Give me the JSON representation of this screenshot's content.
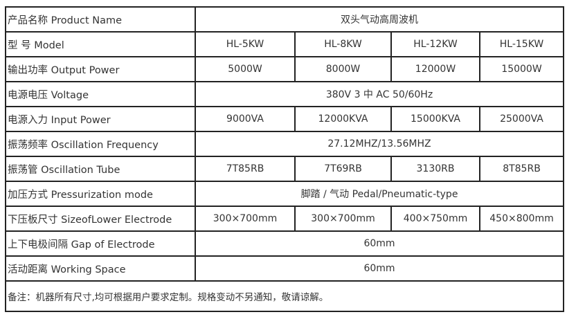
{
  "rows": [
    {
      "label": "产品名称 Product Name",
      "span": "双头气动高周波机"
    },
    {
      "label": "型 号 Model",
      "cells": [
        "HL-5KW",
        "HL-8KW",
        "HL-12KW",
        "HL-15KW"
      ]
    },
    {
      "label": "输出功率 Output Power",
      "cells": [
        "5000W",
        "8000W",
        "12000W",
        "15000W"
      ]
    },
    {
      "label": "电源电压 Voltage",
      "span": "380V 3 中  AC 50/60Hz"
    },
    {
      "label": "电源入力  Input Power",
      "cells": [
        "9000VA",
        "12000KVA",
        "15000KVA",
        "25000VA"
      ]
    },
    {
      "label": "振荡频率 Oscillation Frequency",
      "span": "27.12MHZ/13.56MHZ"
    },
    {
      "label": "振荡管 Oscillation Tube",
      "cells": [
        "7T85RB",
        "7T69RB",
        "3130RB",
        "8T85RB"
      ]
    },
    {
      "label": "加压方式 Pressurization mode",
      "span": "脚踏 / 气动 Pedal/Pneumatic-type"
    },
    {
      "label": "下压板尺寸 SizeofLower Electrode",
      "cells": [
        "300×700mm",
        "300×700mm",
        "400×750mm",
        "450×800mm"
      ]
    },
    {
      "label": "上下电极间隔 Gap of Electrode",
      "span": "60mm"
    },
    {
      "label": "活动距离 Working Space",
      "span": "60mm"
    }
  ],
  "note": "备注：机器所有尺寸,均可根据用户要求定制。规格变动不另通知，敬请谅解。"
}
